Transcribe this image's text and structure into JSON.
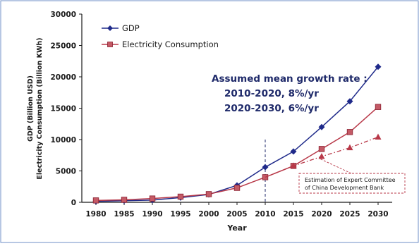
{
  "chart_data": {
    "type": "line",
    "xlabel": "Year",
    "ylabel_lines": [
      "GDP (Billion USD)",
      "Electricity Consumption (Billion KWh)"
    ],
    "x": [
      1980,
      1985,
      1990,
      1995,
      2000,
      2005,
      2010,
      2015,
      2020,
      2025,
      2030
    ],
    "xlim": [
      1977.5,
      2032.5
    ],
    "ylim": [
      0,
      30000
    ],
    "yticks": [
      0,
      5000,
      10000,
      15000,
      20000,
      25000,
      30000
    ],
    "ytick_labels": [
      "0",
      "5000",
      "10000",
      "15000",
      "20000",
      "25000",
      "30000"
    ],
    "xtick_labels": [
      "1980",
      "1985",
      "1990",
      "1995",
      "2000",
      "2005",
      "2010",
      "2015",
      "2020",
      "2025",
      "2030"
    ],
    "grid": false,
    "legend_position": "top-left",
    "series": [
      {
        "name": "GDP",
        "marker": "diamond",
        "color": "#1f2a8a",
        "x": [
          1980,
          1985,
          1990,
          1995,
          2000,
          2005,
          2010,
          2015,
          2020,
          2025,
          2030
        ],
        "values": [
          150,
          250,
          350,
          750,
          1250,
          2700,
          5600,
          8100,
          12000,
          16100,
          21600
        ]
      },
      {
        "name": "Electricity Consumption",
        "marker": "square",
        "color": "#b83848",
        "x": [
          1980,
          1985,
          1990,
          1995,
          2000,
          2005,
          2010,
          2015,
          2020,
          2025,
          2030
        ],
        "values": [
          300,
          400,
          600,
          900,
          1300,
          2300,
          4000,
          5800,
          8500,
          11200,
          15200
        ]
      },
      {
        "name": "Estimation of Expert Committee of China Development Bank",
        "marker": "triangle",
        "color": "#b83848",
        "dashed": true,
        "x": [
          2010,
          2015,
          2020,
          2025,
          2030
        ],
        "values": [
          4000,
          5800,
          7300,
          8700,
          10400
        ]
      }
    ],
    "vertical_marker_x": 2010,
    "annotations": {
      "growth_title": "Assumed mean growth rate :",
      "growth_line1": "2010-2020, 8%/yr",
      "growth_line2": "2020-2030, 6%/yr",
      "estimation_line1": "Estimation of Expert Committee",
      "estimation_line2": "of China Development Bank"
    },
    "colors": {
      "gdp": "#1f2a8a",
      "electricity": "#b83848",
      "axis": "#1a1a1a",
      "annotation_text": "#1f2a6a",
      "frame": "#6f8fc7"
    }
  }
}
